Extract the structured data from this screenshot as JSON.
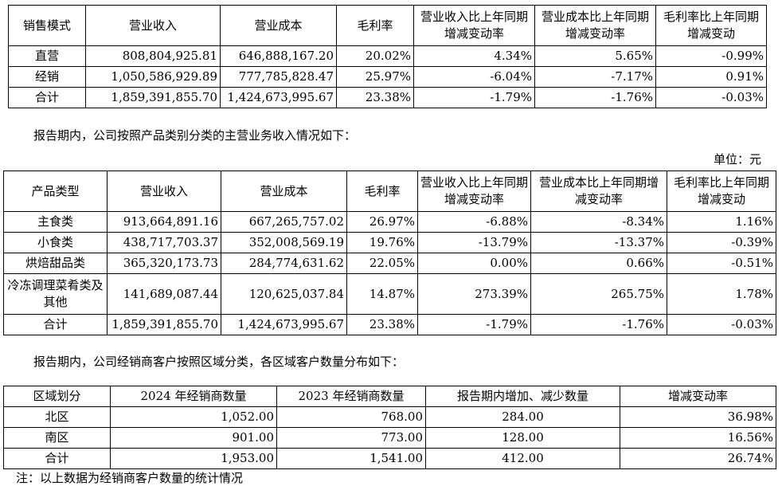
{
  "table1": {
    "headers": [
      "销售模式",
      "营业收入",
      "营业成本",
      "毛利率",
      "营业收入比上年同期增减变动率",
      "营业成本比上年同期增减变动率",
      "毛利率比上年同期增减变动"
    ],
    "rows": [
      [
        "直营",
        "808,804,925.81",
        "646,888,167.20",
        "20.02%",
        "4.34%",
        "5.65%",
        "-0.99%"
      ],
      [
        "经销",
        "1,050,586,929.89",
        "777,785,828.47",
        "25.97%",
        "-6.04%",
        "-7.17%",
        "0.91%"
      ],
      [
        "合计",
        "1,859,391,855.70",
        "1,424,673,995.67",
        "23.38%",
        "-1.79%",
        "-1.76%",
        "-0.03%"
      ]
    ]
  },
  "para1": "报告期内，公司按照产品类别分类的主营业务收入情况如下：",
  "unit": "单位：元",
  "table2": {
    "headers": [
      "产品类型",
      "营业收入",
      "营业成本",
      "毛利率",
      "营业收入比上年同期增减变动率",
      "营业成本比上年同期增减变动率",
      "毛利率比上年同期增减变动"
    ],
    "rows": [
      [
        "主食类",
        "913,664,891.16",
        "667,265,757.02",
        "26.97%",
        "-6.88%",
        "-8.34%",
        "1.16%"
      ],
      [
        "小食类",
        "438,717,703.37",
        "352,008,569.19",
        "19.76%",
        "-13.79%",
        "-13.37%",
        "-0.39%"
      ],
      [
        "烘焙甜品类",
        "365,320,173.73",
        "284,774,631.62",
        "22.05%",
        "0.00%",
        "0.66%",
        "-0.51%"
      ],
      [
        "冷冻调理菜肴类及其他",
        "141,689,087.44",
        "120,625,037.84",
        "14.87%",
        "273.39%",
        "265.75%",
        "1.78%"
      ],
      [
        "合计",
        "1,859,391,855.70",
        "1,424,673,995.67",
        "23.38%",
        "-1.79%",
        "-1.76%",
        "-0.03%"
      ]
    ]
  },
  "para2": "报告期内，公司经销商客户按照区域分类，各区域客户数量分布如下：",
  "table3": {
    "headers": [
      "区域划分",
      "2024 年经销商数量",
      "2023 年经销商数量",
      "报告期内增加、减少数量",
      "增减变动率"
    ],
    "rows": [
      [
        "北区",
        "1,052.00",
        "768.00",
        "284.00",
        "36.98%"
      ],
      [
        "南区",
        "901.00",
        "773.00",
        "128.00",
        "16.56%"
      ],
      [
        "合计",
        "1,953.00",
        "1,541.00",
        "412.00",
        "26.74%"
      ]
    ]
  },
  "cut_text": "注：以上数据为经销商客户数量的统计情况"
}
